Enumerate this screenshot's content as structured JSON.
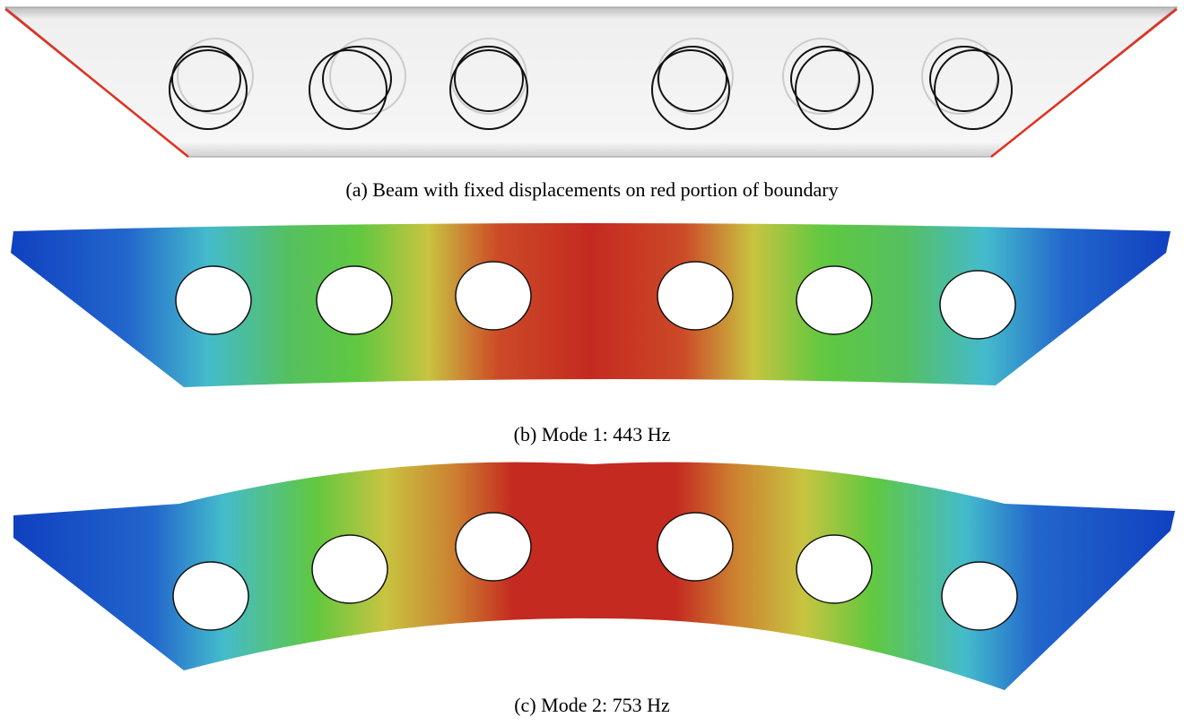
{
  "panels": [
    {
      "caption": "(a) Beam with fixed displacements on red portion of boundary"
    },
    {
      "caption": "(b) Mode 1: 443 Hz"
    },
    {
      "caption": "(c) Mode 2: 753 Hz"
    }
  ]
}
